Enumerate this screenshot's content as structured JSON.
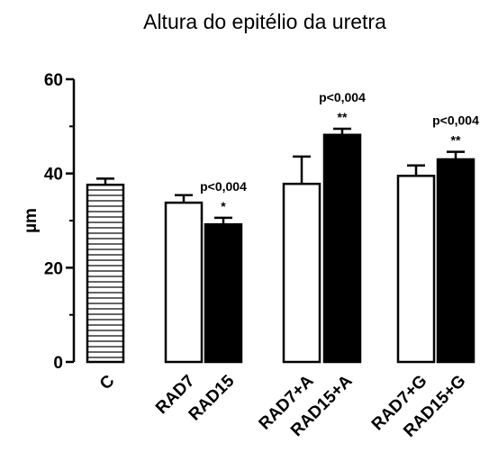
{
  "chart_data": {
    "type": "bar",
    "title": "Altura do epitélio da uretra",
    "xlabel": "",
    "ylabel": "µm",
    "ylim": [
      0,
      60
    ],
    "yticks": [
      "0",
      "20",
      "40",
      "60"
    ],
    "grid": false,
    "legend": "none",
    "bars": [
      {
        "category": "C",
        "value": 37.6,
        "error": 1.3,
        "fill": "hatched",
        "annotation": "",
        "significance": ""
      },
      {
        "category": "RAD7",
        "value": 33.8,
        "error": 1.6,
        "fill": "white",
        "annotation": "",
        "significance": ""
      },
      {
        "category": "RAD15",
        "value": 29.2,
        "error": 1.4,
        "fill": "black",
        "annotation": "p<0,004",
        "significance": "*"
      },
      {
        "category": "RAD7+A",
        "value": 37.8,
        "error": 5.8,
        "fill": "white",
        "annotation": "",
        "significance": ""
      },
      {
        "category": "RAD15+A",
        "value": 48.2,
        "error": 1.3,
        "fill": "black",
        "annotation": "p<0,004",
        "significance": "**"
      },
      {
        "category": "RAD7+G",
        "value": 39.5,
        "error": 2.2,
        "fill": "white",
        "annotation": "",
        "significance": ""
      },
      {
        "category": "RAD15+G",
        "value": 43.0,
        "error": 1.6,
        "fill": "black",
        "annotation": "p<0,004",
        "significance": "**"
      }
    ]
  }
}
